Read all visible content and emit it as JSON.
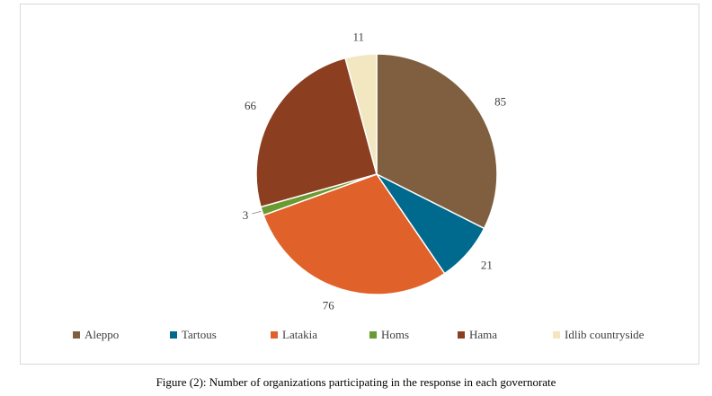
{
  "chart_data": {
    "type": "pie",
    "categories": [
      "Aleppo",
      "Tartous",
      "Latakia",
      "Homs",
      "Hama",
      "Idlib countryside"
    ],
    "values": [
      85,
      21,
      76,
      3,
      66,
      11
    ],
    "colors": [
      "#7f5f3f",
      "#006a8e",
      "#e0622a",
      "#6a9a32",
      "#8b3f20",
      "#f2e7c0"
    ],
    "legend": {
      "position": "bottom"
    },
    "start_angle_deg": 0,
    "direction": "clockwise"
  },
  "caption": "Figure (2): Number of organizations participating in the response in each governorate"
}
